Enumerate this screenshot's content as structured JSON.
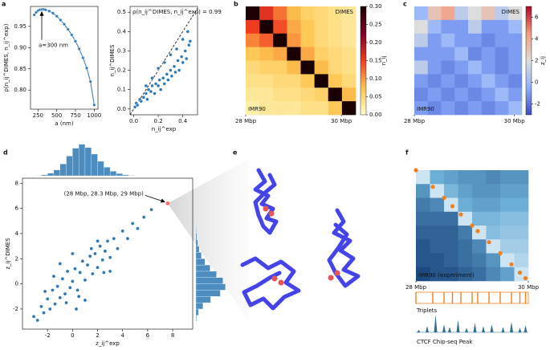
{
  "chart_data": [
    {
      "type": "line",
      "label": "a",
      "x": [
        200,
        225,
        250,
        275,
        300,
        325,
        350,
        400,
        450,
        500,
        550,
        600,
        650,
        700,
        750,
        800,
        850,
        900,
        950,
        1000
      ],
      "values": [
        0.977,
        0.983,
        0.987,
        0.989,
        0.99,
        0.99,
        0.989,
        0.986,
        0.981,
        0.974,
        0.965,
        0.955,
        0.943,
        0.93,
        0.915,
        0.897,
        0.876,
        0.852,
        0.82,
        0.765
      ],
      "xlabel": "a (nm)",
      "ylabel": "ρ(n_ij^DIMES, n_ij^exp)",
      "xlim": [
        150,
        1050
      ],
      "xticks": [
        250,
        500,
        750,
        1000
      ],
      "ylim": [
        0.755,
        0.997
      ],
      "yticks": [
        {
          "value": 0.8,
          "label": "0.80"
        },
        {
          "value": 0.85,
          "label": "0.85"
        },
        {
          "value": 0.9,
          "label": "0.90"
        },
        {
          "value": 0.95,
          "label": "0.95"
        }
      ],
      "color": "#2f78b3",
      "annotation": {
        "text": "a=300 nm",
        "x": 300,
        "y": 0.99
      }
    },
    {
      "type": "scatter",
      "title": "ρ(n_ij^DIMES, n_ij^exp) = 0.99",
      "x": [
        0.01,
        0.02,
        0.03,
        0.05,
        0.06,
        0.08,
        0.1,
        0.11,
        0.12,
        0.14,
        0.15,
        0.17,
        0.18,
        0.2,
        0.21,
        0.22,
        0.24,
        0.25,
        0.27,
        0.28,
        0.3,
        0.31,
        0.33,
        0.34,
        0.36,
        0.37,
        0.39,
        0.4,
        0.42,
        0.43,
        0.45,
        0.46,
        0.1,
        0.15,
        0.2,
        0.25,
        0.3,
        0.35,
        0.4,
        0.44
      ],
      "values": [
        0.01,
        0.03,
        0.02,
        0.05,
        0.04,
        0.06,
        0.08,
        0.05,
        0.1,
        0.09,
        0.12,
        0.08,
        0.13,
        0.12,
        0.15,
        0.1,
        0.16,
        0.13,
        0.18,
        0.15,
        0.2,
        0.17,
        0.22,
        0.19,
        0.25,
        0.2,
        0.27,
        0.24,
        0.3,
        0.26,
        0.33,
        0.35,
        0.12,
        0.16,
        0.21,
        0.24,
        0.28,
        0.31,
        0.36,
        0.4
      ],
      "xlabel": "n_ij^exp",
      "ylabel": "n_ij^DIMES",
      "xlim": [
        -0.03,
        0.52
      ],
      "xticks": [
        {
          "value": 0,
          "label": "0.0"
        },
        {
          "value": 0.2,
          "label": "0.2"
        },
        {
          "value": 0.4,
          "label": "0.4"
        }
      ],
      "ylim": [
        -0.03,
        0.53
      ],
      "yticks": [
        {
          "value": 0,
          "label": "0.0"
        },
        {
          "value": 0.1,
          "label": "0.1"
        },
        {
          "value": 0.2,
          "label": "0.2"
        },
        {
          "value": 0.3,
          "label": "0.3"
        },
        {
          "value": 0.4,
          "label": "0.4"
        },
        {
          "value": 0.5,
          "label": "0.5"
        }
      ],
      "color": "#2f78b3",
      "diagonal": true
    },
    {
      "type": "heatmap",
      "label": "b",
      "upper_label": "DIMES",
      "lower_label": "IMR90",
      "matrix": [
        [
          0.3,
          0.16,
          0.12,
          0.08,
          0.06,
          0.05,
          0.04,
          0.03
        ],
        [
          0.15,
          0.3,
          0.14,
          0.09,
          0.07,
          0.05,
          0.04,
          0.03
        ],
        [
          0.11,
          0.13,
          0.3,
          0.1,
          0.07,
          0.05,
          0.04,
          0.03
        ],
        [
          0.07,
          0.08,
          0.09,
          0.3,
          0.09,
          0.06,
          0.05,
          0.04
        ],
        [
          0.05,
          0.06,
          0.06,
          0.08,
          0.3,
          0.08,
          0.05,
          0.04
        ],
        [
          0.04,
          0.04,
          0.05,
          0.05,
          0.07,
          0.3,
          0.07,
          0.05
        ],
        [
          0.03,
          0.03,
          0.04,
          0.04,
          0.05,
          0.06,
          0.3,
          0.08
        ],
        [
          0.02,
          0.03,
          0.03,
          0.03,
          0.04,
          0.04,
          0.07,
          0.3
        ]
      ],
      "xlim": [
        28,
        30.3
      ],
      "xticks": [
        {
          "value": 28,
          "label": "28 Mbp"
        },
        {
          "value": 30,
          "label": "30 Mbp"
        }
      ],
      "clim": [
        0,
        0.3
      ],
      "cticks": [
        {
          "value": 0,
          "label": "0.00"
        },
        {
          "value": 0.05,
          "label": "0.05"
        },
        {
          "value": 0.1,
          "label": "0.10"
        },
        {
          "value": 0.15,
          "label": "0.15"
        },
        {
          "value": 0.2,
          "label": "0.20"
        },
        {
          "value": 0.25,
          "label": "0.25"
        },
        {
          "value": 0.3,
          "label": "0.30"
        }
      ],
      "colorbar_label": "n_ij",
      "cmap": [
        "#ffffcc",
        "#fec44f",
        "#f03b20",
        "#800026",
        "#1a0000"
      ]
    },
    {
      "type": "heatmap",
      "label": "c",
      "upper_label": "DIMES",
      "lower_label": "IMR90",
      "matrix": [
        [
          0,
          3,
          4,
          1,
          2,
          3,
          1,
          2
        ],
        [
          2,
          0,
          -1,
          -1,
          1,
          -1,
          -1,
          0
        ],
        [
          1,
          -1,
          0,
          -1,
          -1,
          -1.5,
          -1,
          -1
        ],
        [
          -1,
          -1,
          -1,
          0,
          -1.5,
          -1,
          -1.5,
          -1
        ],
        [
          1,
          -1,
          -1.5,
          -1,
          0,
          -1,
          -1.5,
          -1
        ],
        [
          -1,
          -1.5,
          -1,
          -1.5,
          -1,
          0,
          -1,
          -1.5
        ],
        [
          -1.5,
          -1,
          -1.5,
          -1,
          -1.5,
          -1,
          0,
          -1
        ],
        [
          -1,
          -1.5,
          -1,
          -1.5,
          -1,
          -1.5,
          -1,
          0
        ]
      ],
      "xlim": [
        28,
        30.15
      ],
      "xticks": [
        {
          "value": 28,
          "label": "28 Mbp"
        },
        {
          "value": 30,
          "label": "30 Mbp"
        }
      ],
      "clim": [
        -3,
        7
      ],
      "cticks": [
        -2,
        0,
        2,
        4,
        6
      ],
      "colorbar_label": "z_ij",
      "cmap": [
        "#3b4cc0",
        "#8db0fe",
        "#dddddd",
        "#f49a7b",
        "#b40426"
      ]
    },
    {
      "type": "scatter_hist",
      "label": "d",
      "x": [
        -3.1,
        -2.8,
        -2.5,
        -2.3,
        -2,
        -1.8,
        -1.6,
        -1.4,
        -1.2,
        -1,
        -0.8,
        -0.6,
        -0.4,
        -0.2,
        0,
        0.2,
        0.4,
        0.6,
        0.8,
        1,
        1.2,
        1.4,
        1.6,
        1.8,
        2,
        2.2,
        2.4,
        2.6,
        2.8,
        3,
        3.3,
        3.6,
        4,
        4.4,
        4.8,
        5.2,
        5.7,
        6.3,
        -1.5,
        -0.5,
        0.5,
        1.5,
        2.5,
        -2.2,
        -1,
        0,
        1,
        2,
        3,
        0.3
      ],
      "values": [
        -2.6,
        -2.9,
        -1.8,
        -2.3,
        -1.2,
        -2,
        -0.5,
        -1.6,
        -0.2,
        -1.1,
        0.4,
        -0.8,
        1,
        -0.3,
        0.2,
        1.2,
        -0.5,
        0.9,
        1.8,
        0.3,
        1.5,
        2.2,
        0.8,
        2.4,
        1.3,
        3,
        1.9,
        2.6,
        3.4,
        2.1,
        3.6,
        2.8,
        4.2,
        3.6,
        4.8,
        4.4,
        5.3,
        5.9,
        0.6,
        -1.5,
        -1,
        2.8,
        0.9,
        -0.6,
        1.6,
        2.4,
        -1.3,
        3.4,
        1,
        -2
      ],
      "xlabel": "z_ij^exp",
      "ylabel": "z_ij^DIMES",
      "xlim": [
        -4,
        9.6
      ],
      "xticks": [
        -2,
        0,
        2,
        4,
        6,
        8
      ],
      "ylim": [
        -3.6,
        8.4
      ],
      "yticks": [
        -2,
        0,
        2,
        4,
        6,
        8
      ],
      "color": "#2f78b3",
      "highlight": {
        "text": "(28 Mbp, 28.3 Mbp, 29 Mbp)",
        "x": 7.6,
        "y": 6.4,
        "color": "#ff6b6b"
      },
      "x_hist": {
        "bins": [
          -3,
          -2.5,
          -2,
          -1.5,
          -1,
          -0.5,
          0,
          0.5,
          1,
          1.5,
          2,
          2.5,
          3,
          3.5,
          4,
          4.5,
          5
        ],
        "counts": [
          5,
          15,
          40,
          90,
          180,
          300,
          420,
          480,
          430,
          330,
          220,
          130,
          70,
          35,
          15,
          6
        ]
      },
      "y_hist": {
        "bins": [
          -3,
          -2.5,
          -2,
          -1.5,
          -1,
          -0.5,
          0,
          0.5,
          1,
          1.5,
          2,
          2.5,
          3,
          3.5,
          4,
          4.5,
          5
        ],
        "counts": [
          10,
          40,
          110,
          230,
          380,
          460,
          420,
          320,
          220,
          140,
          85,
          50,
          28,
          14,
          7,
          3
        ]
      },
      "hist_lim": [
        0,
        500
      ]
    },
    {
      "type": "structures",
      "label": "e"
    },
    {
      "type": "heatmap",
      "label": "f",
      "lower_label": "IMR90 (experiment)",
      "matrix": [
        [
          0.15,
          0.5,
          0.55,
          0.6,
          0.6,
          0.65,
          0.6,
          0.6
        ],
        [
          0.6,
          0.15,
          0.45,
          0.55,
          0.6,
          0.6,
          0.55,
          0.55
        ],
        [
          0.7,
          0.65,
          0.15,
          0.5,
          0.55,
          0.55,
          0.5,
          0.5
        ],
        [
          0.75,
          0.75,
          0.75,
          0.15,
          0.45,
          0.45,
          0.4,
          0.4
        ],
        [
          0.8,
          0.8,
          0.8,
          0.7,
          0.15,
          0.4,
          0.35,
          0.35
        ],
        [
          0.85,
          0.8,
          0.8,
          0.75,
          0.65,
          0.15,
          0.3,
          0.3
        ],
        [
          0.85,
          0.85,
          0.8,
          0.75,
          0.7,
          0.6,
          0.15,
          0.25
        ],
        [
          0.9,
          0.85,
          0.85,
          0.8,
          0.75,
          0.65,
          0.55,
          0.15
        ]
      ],
      "xlim": [
        28,
        30
      ],
      "xticks": [
        {
          "value": 28,
          "label": "28 Mbp"
        },
        {
          "value": 30,
          "label": "30 Mbp"
        }
      ],
      "clim": [
        0,
        1
      ],
      "cmap": [
        "#f7fbff",
        "#6baed6",
        "#08306b"
      ],
      "triplets": {
        "label": "Triplets",
        "x": [
          28.0,
          28.3,
          28.5,
          28.65,
          28.8,
          29.0,
          29.1,
          29.3,
          29.5,
          29.7,
          29.85,
          29.95
        ],
        "color": "#f07f1e"
      },
      "ctcf": {
        "label": "CTCF Chip-seq Peak",
        "x": [
          28.05,
          28.2,
          28.35,
          28.5,
          28.6,
          28.75,
          28.9,
          29.05,
          29.2,
          29.35,
          29.55,
          29.7,
          29.85,
          29.95
        ],
        "values": [
          0.15,
          0.35,
          1.0,
          0.45,
          0.3,
          0.7,
          0.25,
          0.55,
          0.35,
          0.45,
          0.3,
          0.6,
          0.25,
          0.4
        ],
        "ylim": [
          0,
          1
        ],
        "color": "#2f6f94"
      }
    }
  ]
}
